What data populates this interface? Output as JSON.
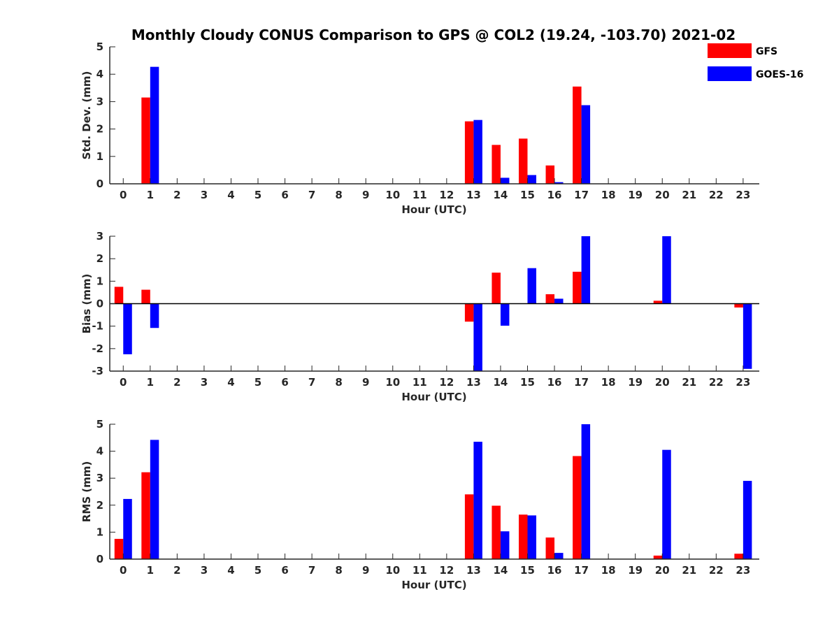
{
  "chart_data": {
    "type": "bar",
    "title": "Monthly Cloudy CONUS Comparison to GPS @ COL2 (19.24, -103.70) 2021-02",
    "legend": {
      "position": "top-right",
      "entries": [
        {
          "name": "GFS",
          "color": "#ff0000"
        },
        {
          "name": "GOES-16",
          "color": "#0000ff"
        }
      ]
    },
    "categories": [
      "0",
      "1",
      "2",
      "3",
      "4",
      "5",
      "6",
      "7",
      "8",
      "9",
      "10",
      "11",
      "12",
      "13",
      "14",
      "15",
      "16",
      "17",
      "18",
      "19",
      "20",
      "21",
      "22",
      "23"
    ],
    "panels": [
      {
        "ylabel": "Std. Dev. (mm)",
        "xlabel": "Hour (UTC)",
        "ylim": [
          0,
          5
        ],
        "yticks": [
          "0",
          "1",
          "2",
          "3",
          "4",
          "5"
        ],
        "series": [
          {
            "name": "GFS",
            "values": [
              0,
              3.15,
              0,
              0,
              0,
              0,
              0,
              0,
              0,
              0,
              0,
              0,
              0,
              2.28,
              1.42,
              1.65,
              0.67,
              3.55,
              0,
              0,
              0,
              0,
              0,
              0
            ]
          },
          {
            "name": "GOES-16",
            "values": [
              0,
              4.27,
              0,
              0,
              0,
              0,
              0,
              0,
              0,
              0,
              0,
              0,
              0,
              2.33,
              0.22,
              0.32,
              0.06,
              2.87,
              0,
              0,
              0,
              0,
              0,
              0
            ]
          }
        ]
      },
      {
        "ylabel": "Bias (mm)",
        "xlabel": "Hour (UTC)",
        "ylim": [
          -3,
          3
        ],
        "yticks": [
          "-3",
          "-2",
          "-1",
          "0",
          "1",
          "2",
          "3"
        ],
        "series": [
          {
            "name": "GFS",
            "values": [
              0.75,
              0.62,
              0,
              0,
              0,
              0,
              0,
              0,
              0,
              0,
              0,
              0,
              0,
              -0.8,
              1.38,
              0,
              0.42,
              1.42,
              0,
              0,
              0.13,
              0,
              0,
              -0.17
            ]
          },
          {
            "name": "GOES-16",
            "values": [
              -2.25,
              -1.08,
              0,
              0,
              0,
              0,
              0,
              0,
              0,
              0,
              0,
              0,
              0,
              -3.0,
              -0.98,
              1.58,
              0.22,
              3.0,
              0,
              0,
              3.0,
              0,
              0,
              -2.9
            ]
          }
        ]
      },
      {
        "ylabel": "RMS (mm)",
        "xlabel": "Hour (UTC)",
        "ylim": [
          0,
          5
        ],
        "yticks": [
          "0",
          "1",
          "2",
          "3",
          "4",
          "5"
        ],
        "series": [
          {
            "name": "GFS",
            "values": [
              0.75,
              3.22,
              0,
              0,
              0,
              0,
              0,
              0,
              0,
              0,
              0,
              0,
              0,
              2.4,
              1.98,
              1.65,
              0.8,
              3.82,
              0,
              0,
              0.13,
              0,
              0,
              0.2
            ]
          },
          {
            "name": "GOES-16",
            "values": [
              2.23,
              4.42,
              0,
              0,
              0,
              0,
              0,
              0,
              0,
              0,
              0,
              0,
              0,
              4.35,
              1.03,
              1.62,
              0.23,
              5.0,
              0,
              0,
              4.05,
              0,
              0,
              2.9
            ]
          }
        ]
      }
    ]
  }
}
